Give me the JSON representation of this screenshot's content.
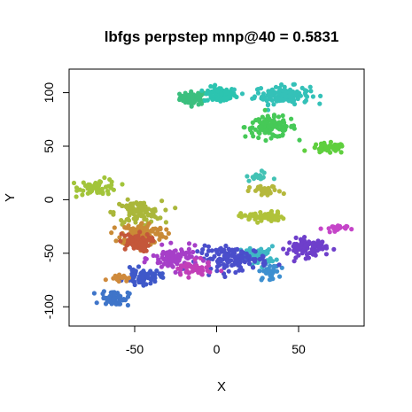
{
  "chart_data": {
    "type": "scatter",
    "title": "lbfgs perpstep mnp@40 = 0.5831",
    "xlabel": "X",
    "ylabel": "Y",
    "xlim": [
      -90,
      90
    ],
    "ylim": [
      -118,
      122
    ],
    "xticks": [
      -50,
      0,
      50
    ],
    "xtick_labels": [
      "-50",
      "0",
      "50"
    ],
    "yticks": [
      -100,
      -50,
      0,
      50,
      100
    ],
    "ytick_labels": [
      "-100",
      "-50",
      "0",
      "50",
      "100"
    ],
    "grid": false,
    "legend": "none",
    "clusters": [
      {
        "color": "#3bbf7e",
        "center": [
          -14,
          95
        ],
        "spread": [
          7,
          5
        ],
        "n": 60
      },
      {
        "color": "#2cc4b0",
        "center": [
          2,
          98
        ],
        "spread": [
          8,
          6
        ],
        "n": 90
      },
      {
        "color": "#34c1b8",
        "center": [
          40,
          98
        ],
        "spread": [
          14,
          7
        ],
        "n": 130
      },
      {
        "color": "#46c957",
        "center": [
          33,
          68
        ],
        "spread": [
          13,
          8
        ],
        "n": 110
      },
      {
        "color": "#5fcf3e",
        "center": [
          68,
          48
        ],
        "spread": [
          9,
          4
        ],
        "n": 50
      },
      {
        "color": "#a2c43a",
        "center": [
          -72,
          12
        ],
        "spread": [
          10,
          6
        ],
        "n": 60
      },
      {
        "color": "#aab73a",
        "center": [
          -48,
          -12
        ],
        "spread": [
          12,
          9
        ],
        "n": 100
      },
      {
        "color": "#c98a36",
        "center": [
          -45,
          -32
        ],
        "spread": [
          11,
          9
        ],
        "n": 130
      },
      {
        "color": "#c4573a",
        "center": [
          -50,
          -40
        ],
        "spread": [
          8,
          7
        ],
        "n": 70
      },
      {
        "color": "#b0c23a",
        "center": [
          28,
          -16
        ],
        "spread": [
          11,
          4
        ],
        "n": 60
      },
      {
        "color": "#b5b83c",
        "center": [
          30,
          8
        ],
        "spread": [
          8,
          4
        ],
        "n": 30
      },
      {
        "color": "#3fb8c4",
        "center": [
          25,
          -52
        ],
        "spread": [
          9,
          7
        ],
        "n": 60
      },
      {
        "color": "#3d8fd0",
        "center": [
          32,
          -68
        ],
        "spread": [
          5,
          6
        ],
        "n": 30
      },
      {
        "color": "#4a4ecb",
        "center": [
          10,
          -55
        ],
        "spread": [
          18,
          9
        ],
        "n": 130
      },
      {
        "color": "#6e3fcb",
        "center": [
          55,
          -45
        ],
        "spread": [
          10,
          7
        ],
        "n": 90
      },
      {
        "color": "#a63fc8",
        "center": [
          -25,
          -55
        ],
        "spread": [
          12,
          9
        ],
        "n": 90
      },
      {
        "color": "#c23fb8",
        "center": [
          -15,
          -65
        ],
        "spread": [
          10,
          6
        ],
        "n": 50
      },
      {
        "color": "#3f58c9",
        "center": [
          -45,
          -72
        ],
        "spread": [
          9,
          6
        ],
        "n": 70
      },
      {
        "color": "#3f75c9",
        "center": [
          -62,
          -92
        ],
        "spread": [
          7,
          6
        ],
        "n": 60
      },
      {
        "color": "#cf8a3c",
        "center": [
          -60,
          -72
        ],
        "spread": [
          5,
          3
        ],
        "n": 15
      },
      {
        "color": "#c545c8",
        "center": [
          72,
          -27
        ],
        "spread": [
          6,
          3
        ],
        "n": 25
      },
      {
        "color": "#42c2b4",
        "center": [
          25,
          22
        ],
        "spread": [
          6,
          4
        ],
        "n": 15
      }
    ]
  }
}
